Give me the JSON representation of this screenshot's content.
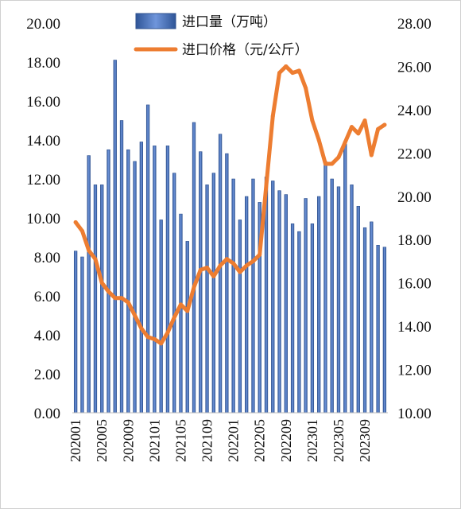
{
  "chart_data": {
    "type": "bar+line",
    "categories": [
      "202001",
      "202002",
      "202003",
      "202004",
      "202005",
      "202006",
      "202007",
      "202008",
      "202009",
      "202010",
      "202011",
      "202012",
      "202101",
      "202102",
      "202103",
      "202104",
      "202105",
      "202106",
      "202107",
      "202108",
      "202109",
      "202110",
      "202111",
      "202112",
      "202201",
      "202202",
      "202203",
      "202204",
      "202205",
      "202206",
      "202207",
      "202208",
      "202209",
      "202210",
      "202211",
      "202212",
      "202301",
      "202302",
      "202303",
      "202304",
      "202305",
      "202306",
      "202307",
      "202308",
      "202309",
      "202310",
      "202311",
      "202312"
    ],
    "xtick_labels": [
      "202001",
      "202005",
      "202009",
      "202101",
      "202105",
      "202109",
      "202201",
      "202205",
      "202209",
      "202301",
      "202305",
      "202309"
    ],
    "series": [
      {
        "name": "进口量（万吨）",
        "type": "bar",
        "axis": "left",
        "color": "#4472C4",
        "values": [
          8.3,
          8.0,
          13.2,
          11.7,
          11.7,
          13.5,
          18.1,
          15.0,
          13.5,
          12.9,
          13.9,
          15.8,
          13.7,
          9.9,
          13.7,
          12.3,
          10.2,
          8.8,
          14.9,
          13.4,
          11.7,
          12.3,
          14.3,
          13.3,
          12.0,
          9.9,
          11.1,
          12.0,
          10.8,
          12.1,
          11.9,
          11.4,
          11.2,
          9.7,
          9.3,
          11.0,
          9.7,
          11.1,
          12.9,
          12.0,
          11.6,
          13.8,
          11.7,
          10.6,
          9.5,
          9.8,
          8.6,
          8.5
        ]
      },
      {
        "name": "进口价格（元/公斤）",
        "type": "line",
        "axis": "right",
        "color": "#ED7D31",
        "values": [
          18.8,
          18.4,
          17.5,
          17.1,
          16.0,
          15.6,
          15.3,
          15.3,
          15.1,
          14.5,
          13.9,
          13.5,
          13.4,
          13.2,
          13.7,
          14.4,
          15.0,
          14.7,
          15.8,
          16.6,
          16.7,
          16.3,
          16.8,
          17.1,
          16.9,
          16.5,
          16.8,
          17.0,
          17.3,
          20.5,
          23.7,
          25.7,
          26.0,
          25.7,
          25.8,
          25.0,
          23.5,
          22.6,
          21.5,
          21.5,
          21.8,
          22.5,
          23.2,
          22.9,
          23.5,
          21.9,
          23.1,
          23.3
        ]
      }
    ],
    "y_left": {
      "min": 0,
      "max": 20,
      "step": 2,
      "tick_labels": [
        "0.00",
        "2.00",
        "4.00",
        "6.00",
        "8.00",
        "10.00",
        "12.00",
        "14.00",
        "16.00",
        "18.00",
        "20.00"
      ]
    },
    "y_right": {
      "min": 10,
      "max": 28,
      "step": 2,
      "tick_labels": [
        "10.00",
        "12.00",
        "14.00",
        "16.00",
        "18.00",
        "20.00",
        "22.00",
        "24.00",
        "26.00",
        "28.00"
      ]
    },
    "grid": false,
    "legend_position": "top-center"
  }
}
